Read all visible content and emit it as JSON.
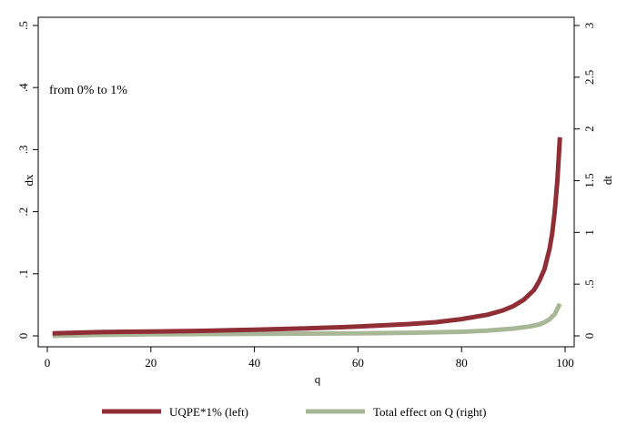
{
  "chart_data": {
    "type": "line",
    "title": "",
    "annotation": "from 0% to 1%",
    "xlabel": "q",
    "ylabel_left": "dx",
    "ylabel_right": "dt",
    "xlim": [
      0,
      100
    ],
    "ylim_left": [
      0,
      0.5
    ],
    "ylim_right": [
      0,
      3
    ],
    "xticks": [
      0,
      20,
      40,
      60,
      80,
      100
    ],
    "xtick_labels": [
      "0",
      "20",
      "40",
      "60",
      "80",
      "100"
    ],
    "yticks_left": [
      0,
      0.1,
      0.2,
      0.3,
      0.4,
      0.5
    ],
    "ytick_labels_left": [
      "0",
      ".1",
      ".2",
      ".3",
      ".4",
      ".5"
    ],
    "yticks_right": [
      0,
      0.5,
      1,
      1.5,
      2,
      2.5,
      3
    ],
    "ytick_labels_right": [
      "0",
      ".5",
      "1",
      "1.5",
      "2",
      "2.5",
      "3"
    ],
    "grid": false,
    "legend_position": "bottom",
    "series": [
      {
        "name": "UQPE*1% (left)",
        "axis": "left",
        "color": "#8f2e35",
        "x": [
          1,
          5,
          10,
          20,
          30,
          40,
          50,
          60,
          70,
          75,
          80,
          85,
          88,
          90,
          92,
          94,
          95,
          96,
          97,
          97.5,
          98,
          98.5,
          99
        ],
        "y": [
          0.004,
          0.005,
          0.006,
          0.007,
          0.008,
          0.01,
          0.012,
          0.015,
          0.019,
          0.022,
          0.027,
          0.034,
          0.041,
          0.048,
          0.058,
          0.074,
          0.088,
          0.107,
          0.14,
          0.165,
          0.2,
          0.25,
          0.32
        ]
      },
      {
        "name": "Total effect on Q (right)",
        "axis": "right",
        "color": "#a8b795",
        "x": [
          1,
          10,
          20,
          30,
          40,
          50,
          60,
          70,
          80,
          85,
          90,
          93,
          95,
          96,
          97,
          98,
          98.5,
          99
        ],
        "y": [
          0.0,
          0.01,
          0.015,
          0.018,
          0.02,
          0.022,
          0.025,
          0.03,
          0.04,
          0.05,
          0.07,
          0.09,
          0.11,
          0.13,
          0.16,
          0.21,
          0.26,
          0.31
        ]
      }
    ]
  }
}
